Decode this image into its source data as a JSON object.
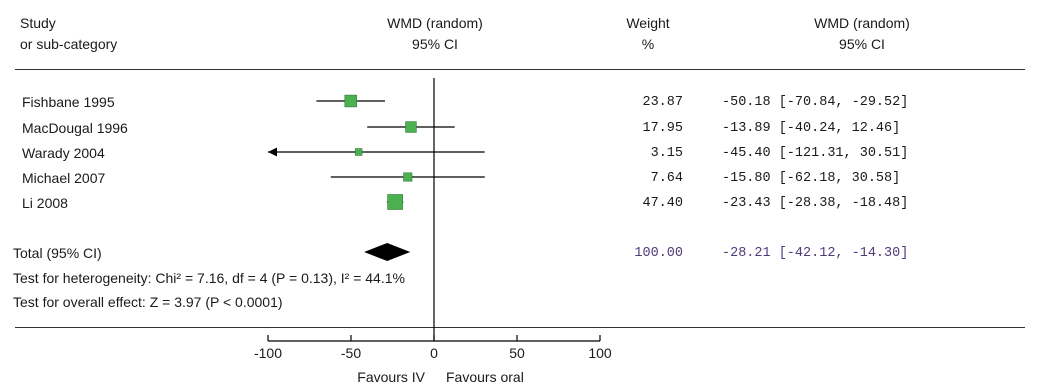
{
  "header": {
    "col1_line1": "Study",
    "col1_line2": "or sub-category",
    "col2_line1": "WMD (random)",
    "col2_line2": "95% CI",
    "col3_line1": "Weight",
    "col3_line2": "%",
    "col4_line1": "WMD (random)",
    "col4_line2": "95% CI"
  },
  "studies": [
    {
      "name": "Fishbane 1995",
      "weight": "23.87",
      "ci_text": "-50.18 [-70.84, -29.52]"
    },
    {
      "name": "MacDougal 1996",
      "weight": "17.95",
      "ci_text": "-13.89 [-40.24, 12.46]"
    },
    {
      "name": "Warady 2004",
      "weight": "3.15",
      "ci_text": "-45.40 [-121.31, 30.51]"
    },
    {
      "name": "Michael 2007",
      "weight": "7.64",
      "ci_text": "-15.80 [-62.18, 30.58]"
    },
    {
      "name": "Li 2008",
      "weight": "47.40",
      "ci_text": "-23.43 [-28.38, -18.48]"
    }
  ],
  "total": {
    "label": "Total (95% CI)",
    "weight": "100.00",
    "ci_text": "-28.21 [-42.12, -14.30]"
  },
  "heterogeneity_text": "Test for heterogeneity: Chi² = 7.16, df = 4 (P = 0.13), I² = 44.1%",
  "overall_effect_text": "Test for overall effect: Z = 3.97 (P < 0.0001)",
  "favours_left": "Favours IV",
  "favours_right": "Favours oral",
  "colors": {
    "marker": "#4caf50",
    "marker_border": "#2e7d32",
    "line": "#000000",
    "diamond": "#000000",
    "text_value": "#4f3a7a"
  },
  "chart_data": {
    "type": "forest",
    "x_axis": {
      "ticks": [
        -100,
        -50,
        0,
        50,
        100
      ],
      "tick_labels": [
        "-100",
        "-50",
        "0",
        "50",
        "100"
      ],
      "range": [
        -100,
        100
      ]
    },
    "series": [
      {
        "name": "Fishbane 1995",
        "mean": -50.18,
        "ci_low": -70.84,
        "ci_high": -29.52,
        "weight": 23.87
      },
      {
        "name": "MacDougal 1996",
        "mean": -13.89,
        "ci_low": -40.24,
        "ci_high": 12.46,
        "weight": 17.95
      },
      {
        "name": "Warady 2004",
        "mean": -45.4,
        "ci_low": -121.31,
        "ci_high": 30.51,
        "weight": 3.15
      },
      {
        "name": "Michael 2007",
        "mean": -15.8,
        "ci_low": -62.18,
        "ci_high": 30.58,
        "weight": 7.64
      },
      {
        "name": "Li 2008",
        "mean": -23.43,
        "ci_low": -28.38,
        "ci_high": -18.48,
        "weight": 47.4
      }
    ],
    "pooled": {
      "name": "Total (95% CI)",
      "mean": -28.21,
      "ci_low": -42.12,
      "ci_high": -14.3,
      "weight": 100.0
    }
  }
}
